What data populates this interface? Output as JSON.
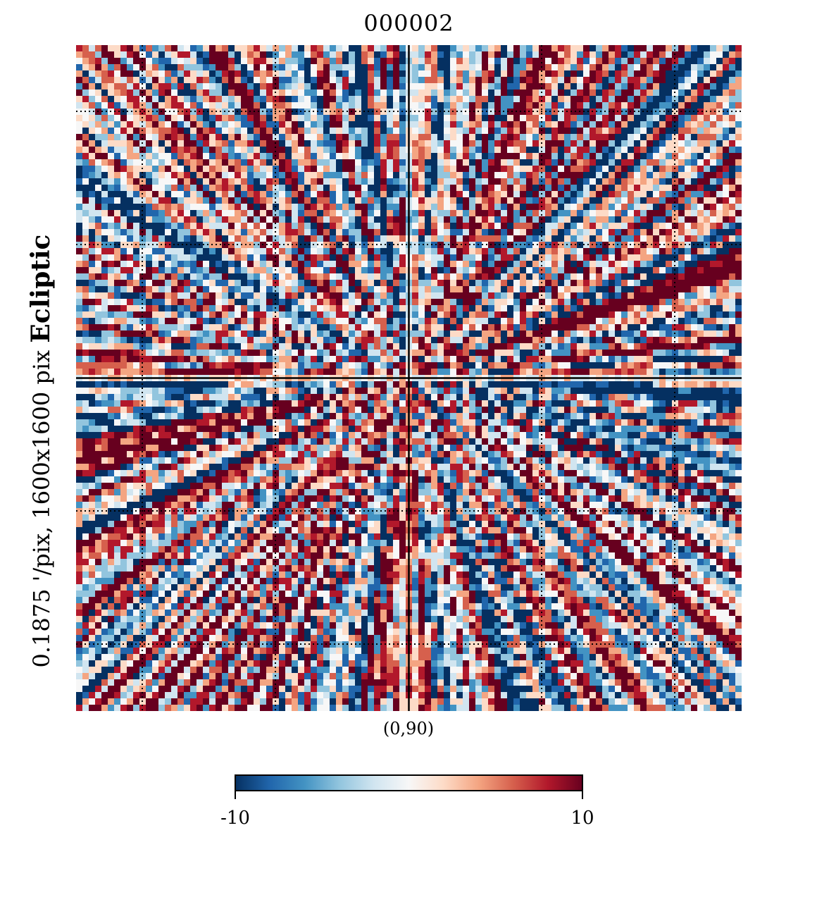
{
  "chart_data": {
    "type": "heatmap",
    "title": "000002",
    "projection_label": {
      "coord": "Ecliptic",
      "resolution": "0.1875 '/pix,",
      "size": "1600x1600 pix"
    },
    "center_label": "(0,90)",
    "colorbar": {
      "cmap": "RdBu_r",
      "min": -10,
      "max": 10,
      "min_label": "-10",
      "max_label": "10",
      "colors": [
        "#053061",
        "#2166ac",
        "#4393c3",
        "#92c5de",
        "#d1e5f0",
        "#f7f7f7",
        "#fddbc7",
        "#f4a582",
        "#d6604d",
        "#b2182b",
        "#67001f"
      ]
    },
    "graticule": {
      "style": "dotted",
      "grid": true
    },
    "pattern": "radial streaks emanating from the map center (0,90)"
  }
}
